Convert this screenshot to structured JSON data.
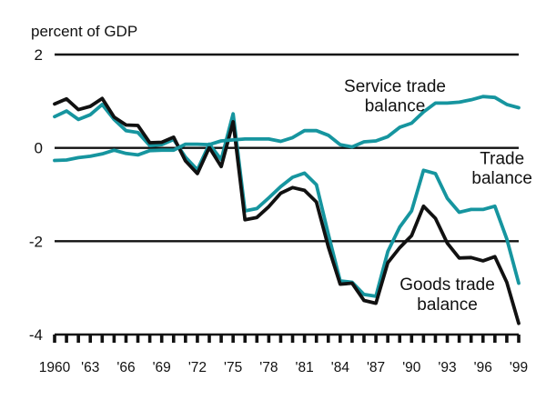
{
  "chart_data": {
    "type": "line",
    "ylabel": "percent of GDP",
    "ylim": [
      -4,
      2
    ],
    "yticks": [
      2,
      0,
      -2,
      -4
    ],
    "ytick_labels": [
      "2",
      "0",
      "-2",
      "-4"
    ],
    "xlim": [
      1960,
      1999
    ],
    "xtick_values": [
      1960,
      1963,
      1966,
      1969,
      1972,
      1975,
      1978,
      1981,
      1984,
      1987,
      1990,
      1993,
      1996,
      1999
    ],
    "xtick_labels": [
      "1960",
      "'63",
      "'66",
      "'69",
      "'72",
      "'75",
      "'78",
      "'81",
      "'84",
      "'87",
      "'90",
      "'93",
      "'96",
      "'99"
    ],
    "grid": "horizontal",
    "x": [
      1960,
      1961,
      1962,
      1963,
      1964,
      1965,
      1966,
      1967,
      1968,
      1969,
      1970,
      1971,
      1972,
      1973,
      1974,
      1975,
      1976,
      1977,
      1978,
      1979,
      1980,
      1981,
      1982,
      1983,
      1984,
      1985,
      1986,
      1987,
      1988,
      1989,
      1990,
      1991,
      1992,
      1993,
      1994,
      1995,
      1996,
      1997,
      1998,
      1999
    ],
    "series": [
      {
        "name": "Service trade balance",
        "color": "#16959f",
        "values": [
          -0.27,
          -0.26,
          -0.21,
          -0.18,
          -0.13,
          -0.05,
          -0.12,
          -0.15,
          -0.06,
          -0.05,
          -0.05,
          0.08,
          0.08,
          0.07,
          0.15,
          0.17,
          0.19,
          0.19,
          0.19,
          0.14,
          0.22,
          0.37,
          0.37,
          0.27,
          0.07,
          0.02,
          0.13,
          0.15,
          0.24,
          0.44,
          0.53,
          0.77,
          0.96,
          0.96,
          0.98,
          1.03,
          1.1,
          1.08,
          0.93,
          0.86
        ]
      },
      {
        "name": "Trade balance",
        "color": "#16959f",
        "values": [
          0.67,
          0.79,
          0.61,
          0.71,
          0.93,
          0.61,
          0.37,
          0.33,
          0.05,
          0.07,
          0.18,
          -0.2,
          -0.47,
          0.08,
          -0.25,
          0.73,
          -1.35,
          -1.3,
          -1.07,
          -0.83,
          -0.63,
          -0.54,
          -0.79,
          -1.85,
          -2.85,
          -2.88,
          -3.14,
          -3.18,
          -2.22,
          -1.7,
          -1.35,
          -0.48,
          -0.55,
          -1.08,
          -1.38,
          -1.32,
          -1.32,
          -1.25,
          -1.95,
          -2.9
        ]
      },
      {
        "name": "Goods trade balance",
        "color": "#111111",
        "values": [
          0.94,
          1.05,
          0.82,
          0.89,
          1.06,
          0.66,
          0.49,
          0.48,
          0.11,
          0.12,
          0.23,
          -0.28,
          -0.55,
          0.01,
          -0.4,
          0.56,
          -1.54,
          -1.49,
          -1.26,
          -0.97,
          -0.85,
          -0.91,
          -1.16,
          -2.12,
          -2.92,
          -2.9,
          -3.27,
          -3.33,
          -2.46,
          -2.14,
          -1.88,
          -1.25,
          -1.51,
          -2.04,
          -2.36,
          -2.35,
          -2.42,
          -2.33,
          -2.88,
          -3.76
        ]
      }
    ],
    "annotations": [
      {
        "text": "Service trade",
        "series": "Service trade balance"
      },
      {
        "text": "balance",
        "series": "Service trade balance"
      },
      {
        "text": "Trade",
        "series": "Trade balance"
      },
      {
        "text": "balance",
        "series": "Trade balance"
      },
      {
        "text": "Goods trade",
        "series": "Goods trade balance"
      },
      {
        "text": "balance",
        "series": "Goods trade balance"
      }
    ]
  }
}
